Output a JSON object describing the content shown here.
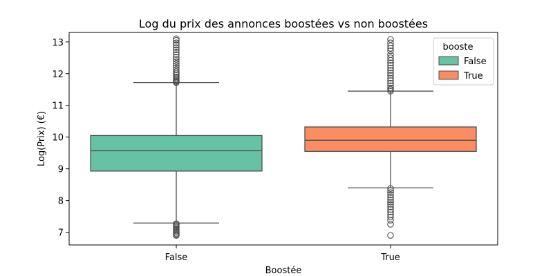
{
  "chart_data": {
    "type": "boxplot",
    "title": "Log du prix des annonces boostées vs non boostées",
    "xlabel": "Boostée",
    "ylabel": "Log(Prix) (€)",
    "ylim": [
      6.6,
      13.3
    ],
    "yticks": [
      7,
      8,
      9,
      10,
      11,
      12,
      13
    ],
    "categories": [
      "False",
      "True"
    ],
    "legend": {
      "title": "booste",
      "placement": "top-right",
      "entries": [
        {
          "label": "False",
          "color": "#66c2a5"
        },
        {
          "label": "True",
          "color": "#fc8d62"
        }
      ]
    },
    "grid": false,
    "series": [
      {
        "name": "False",
        "color": "#66c2a5",
        "q1": 8.93,
        "median": 9.57,
        "q3": 10.05,
        "whisker_low": 7.29,
        "whisker_high": 11.72,
        "outliers_high": [
          11.72,
          11.75,
          11.78,
          11.82,
          11.86,
          11.9,
          11.95,
          12.0,
          12.06,
          12.12,
          12.18,
          12.25,
          12.32,
          12.38,
          12.45,
          12.52,
          12.6,
          12.68,
          12.75,
          12.82,
          12.9,
          12.97,
          13.05,
          13.1
        ],
        "outliers_low": [
          7.27,
          7.24,
          7.2,
          7.16,
          7.12,
          7.08,
          7.04,
          7.0,
          6.96,
          6.92,
          6.9
        ]
      },
      {
        "name": "True",
        "color": "#fc8d62",
        "q1": 9.55,
        "median": 9.9,
        "q3": 10.32,
        "whisker_low": 8.4,
        "whisker_high": 11.45,
        "outliers_high": [
          11.45,
          11.5,
          11.55,
          11.62,
          11.7,
          11.78,
          11.86,
          11.95,
          12.02,
          12.1,
          12.18,
          12.26,
          12.34,
          12.42,
          12.5,
          12.6,
          12.72,
          12.8,
          12.88,
          12.97,
          13.08
        ],
        "outliers_low": [
          8.38,
          8.32,
          8.25,
          8.18,
          8.1,
          8.02,
          7.95,
          7.88,
          7.8,
          7.72,
          7.64,
          7.55,
          7.48,
          7.38,
          7.25,
          6.9
        ]
      }
    ]
  }
}
